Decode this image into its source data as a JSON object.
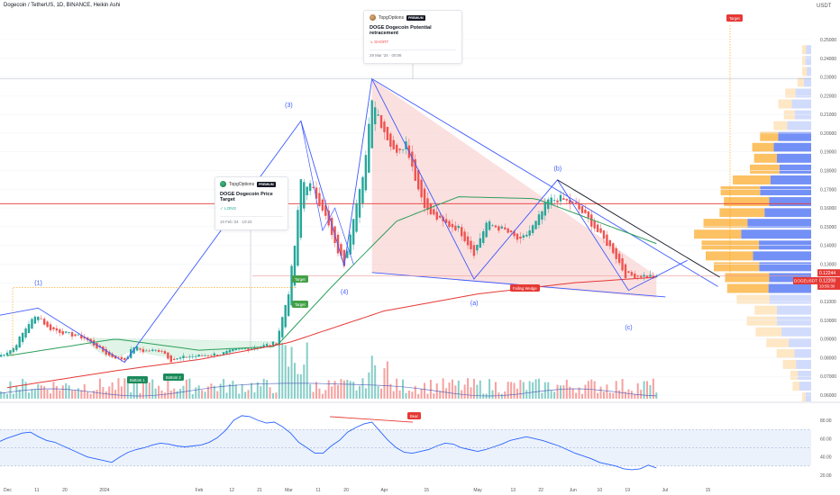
{
  "header": {
    "symbol_line": "Dogecoin / TetherUS, 1D, BINANCE, Heikin Ashi",
    "currency": "USDT"
  },
  "cards": {
    "long": {
      "brand": "TopgOptions",
      "badge": "PREMIUM",
      "title": "DOGE Dogecoin Price Target",
      "direction": "LONG",
      "direction_mark": "✓",
      "date": "10 Feb '24 · 10:23"
    },
    "short": {
      "brand": "TopgOptions",
      "badge": "PREMIUM",
      "title": "DOGE Dogecoin Potential retracement",
      "direction": "SHORT",
      "direction_mark": "↘",
      "date": "29 Mar '24 · 00:06"
    }
  },
  "colors": {
    "bull": "#26a69a",
    "bear": "#ef5350",
    "wave_line": "#3d5afe",
    "ema_green": "#2e9e5b",
    "ema_red": "#e53935",
    "wedge_fill": "#f8c6c6",
    "resistance": "#e53935",
    "profile_blue": "#5b7cf5",
    "profile_orange": "#fbb13c",
    "rsi_line": "#2962ff",
    "rsi_band": "#e3ecfb"
  },
  "chart_data": [
    {
      "type": "candlestick",
      "title": "",
      "price_scale": "USDT",
      "x_ticks": [
        "Dec",
        "11",
        "20",
        "2024",
        "Feb",
        "12",
        "21",
        "Mar",
        "11",
        "20",
        "Apr",
        "15",
        "May",
        "13",
        "22",
        "Jun",
        "10",
        "19",
        "Jul",
        "15"
      ],
      "y_ticks": [
        0.06,
        0.07,
        0.08,
        0.09,
        0.1,
        0.11,
        0.12,
        0.13,
        0.14,
        0.15,
        0.16,
        0.17,
        0.18,
        0.19,
        0.2,
        0.21,
        0.22,
        0.23,
        0.24,
        0.25
      ],
      "y_tick_labels": [
        "0.06000",
        "0.07000",
        "0.08000",
        "0.09000",
        "0.10000",
        "0.11000",
        "0.12000",
        "0.13000",
        "0.14000",
        "0.15000",
        "0.16000",
        "0.17000",
        "0.18000",
        "0.19000",
        "0.20000",
        "0.21000",
        "0.22000",
        "0.23000",
        "0.24000",
        "0.25000"
      ],
      "ylim": [
        0.059,
        0.258
      ],
      "last_price": {
        "value": 0.12244,
        "label": "0.12244",
        "symbol_tag": "DOGEUSDT"
      },
      "secondary_price": {
        "value": 0.12208,
        "label": "0.12208",
        "countdown": "10:56:30"
      },
      "price_path": [
        {
          "x": "Nov 28",
          "y": 0.0805
        },
        {
          "x": "Dec 3",
          "y": 0.085
        },
        {
          "x": "Dec 8",
          "y": 0.0985
        },
        {
          "x": "Dec 11",
          "y": 0.103
        },
        {
          "x": "Dec 14",
          "y": 0.096
        },
        {
          "x": "Dec 20",
          "y": 0.093
        },
        {
          "x": "Dec 26",
          "y": 0.0905
        },
        {
          "x": "Jan 3",
          "y": 0.081
        },
        {
          "x": "Jan 8",
          "y": 0.079
        },
        {
          "x": "Jan 11",
          "y": 0.086
        },
        {
          "x": "Jan 14",
          "y": 0.0835
        },
        {
          "x": "Jan 20",
          "y": 0.084
        },
        {
          "x": "Jan 23",
          "y": 0.0785
        },
        {
          "x": "Jan 28",
          "y": 0.0805
        },
        {
          "x": "Feb 1",
          "y": 0.081
        },
        {
          "x": "Feb 8",
          "y": 0.082
        },
        {
          "x": "Feb 14",
          "y": 0.0845
        },
        {
          "x": "Feb 21",
          "y": 0.086
        },
        {
          "x": "Feb 26",
          "y": 0.088
        },
        {
          "x": "Mar 1",
          "y": 0.115
        },
        {
          "x": "Mar 3",
          "y": 0.14
        },
        {
          "x": "Mar 5",
          "y": 0.175
        },
        {
          "x": "Mar 8",
          "y": 0.172
        },
        {
          "x": "Mar 12",
          "y": 0.16
        },
        {
          "x": "Mar 16",
          "y": 0.14
        },
        {
          "x": "Mar 19",
          "y": 0.13
        },
        {
          "x": "Mar 22",
          "y": 0.156
        },
        {
          "x": "Mar 25",
          "y": 0.175
        },
        {
          "x": "Mar 28",
          "y": 0.22
        },
        {
          "x": "Mar 31",
          "y": 0.205
        },
        {
          "x": "Apr 4",
          "y": 0.19
        },
        {
          "x": "Apr 8",
          "y": 0.195
        },
        {
          "x": "Apr 12",
          "y": 0.17
        },
        {
          "x": "Apr 15",
          "y": 0.158
        },
        {
          "x": "Apr 20",
          "y": 0.152
        },
        {
          "x": "Apr 25",
          "y": 0.149
        },
        {
          "x": "Apr 30",
          "y": 0.136
        },
        {
          "x": "May 4",
          "y": 0.152
        },
        {
          "x": "May 10",
          "y": 0.148
        },
        {
          "x": "May 15",
          "y": 0.142
        },
        {
          "x": "May 20",
          "y": 0.152
        },
        {
          "x": "May 24",
          "y": 0.164
        },
        {
          "x": "May 28",
          "y": 0.165
        },
        {
          "x": "Jun 2",
          "y": 0.161
        },
        {
          "x": "Jun 6",
          "y": 0.154
        },
        {
          "x": "Jun 10",
          "y": 0.145
        },
        {
          "x": "Jun 14",
          "y": 0.137
        },
        {
          "x": "Jun 18",
          "y": 0.124
        },
        {
          "x": "Jun 22",
          "y": 0.124
        },
        {
          "x": "Jun 26",
          "y": 0.1235
        },
        {
          "x": "Jun 28",
          "y": 0.1224
        }
      ],
      "moving_averages": [
        {
          "name": "",
          "color": "#2e9e5b",
          "values": [
            {
              "x": "Dec 1",
              "y": 0.081
            },
            {
              "x": "Jan 5",
              "y": 0.09
            },
            {
              "x": "Feb 1",
              "y": 0.084
            },
            {
              "x": "Feb 26",
              "y": 0.086
            },
            {
              "x": "Mar 15",
              "y": 0.118
            },
            {
              "x": "Apr 5",
              "y": 0.153
            },
            {
              "x": "Apr 25",
              "y": 0.166
            },
            {
              "x": "May 20",
              "y": 0.165
            },
            {
              "x": "Jun 10",
              "y": 0.152
            },
            {
              "x": "Jun 28",
              "y": 0.141
            }
          ]
        },
        {
          "name": "",
          "color": "#e53935",
          "values": [
            {
              "x": "Dec 1",
              "y": 0.064
            },
            {
              "x": "Jan 5",
              "y": 0.073
            },
            {
              "x": "Feb 1",
              "y": 0.079
            },
            {
              "x": "Mar 1",
              "y": 0.088
            },
            {
              "x": "Apr 1",
              "y": 0.105
            },
            {
              "x": "May 1",
              "y": 0.114
            },
            {
              "x": "Jun 1",
              "y": 0.12
            },
            {
              "x": "Jun 28",
              "y": 0.123
            }
          ]
        }
      ],
      "horizontal_levels": [
        {
          "label": "",
          "value": 0.1623,
          "color": "#e53935"
        },
        {
          "label": "",
          "value": 0.1237,
          "color": "#ef9a9a"
        }
      ],
      "wave_labels": [
        {
          "text": "(1)",
          "x": "Dec 11",
          "y": 0.119
        },
        {
          "text": "(3)",
          "x": "Mar 1",
          "y": 0.214
        },
        {
          "text": "(4)",
          "x": "Mar 19",
          "y": 0.114
        },
        {
          "text": "(a)",
          "x": "Apr 30",
          "y": 0.108
        },
        {
          "text": "(b)",
          "x": "May 27",
          "y": 0.18
        },
        {
          "text": "(c)",
          "x": "Jun 19",
          "y": 0.095
        }
      ],
      "annotations": [
        "Falling Wedge",
        "Bottom 1",
        "Bottom 2",
        "Target",
        "Target",
        "Target",
        "Bear"
      ]
    },
    {
      "type": "line",
      "title": "",
      "y_ticks": [
        20,
        40,
        60,
        80
      ],
      "y_tick_labels": [
        "20.00",
        "40.00",
        "60.00",
        "80.00"
      ],
      "ylim": [
        10,
        90
      ],
      "band": [
        30,
        70
      ],
      "series": [
        {
          "name": "",
          "values": [
            56,
            60,
            63,
            66,
            67,
            62,
            58,
            56,
            52,
            48,
            44,
            40,
            38,
            36,
            34,
            40,
            45,
            48,
            50,
            53,
            55,
            54,
            52,
            51,
            52,
            53,
            56,
            61,
            69,
            80,
            85,
            84,
            80,
            77,
            78,
            73,
            66,
            56,
            50,
            44,
            44,
            52,
            58,
            67,
            72,
            76,
            78,
            68,
            58,
            50,
            45,
            44,
            46,
            48,
            52,
            55,
            54,
            50,
            48,
            46,
            48,
            51,
            54,
            58,
            60,
            62,
            60,
            58,
            55,
            52,
            48,
            44,
            41,
            38,
            34,
            32,
            30,
            27,
            26,
            27,
            31,
            28
          ]
        }
      ]
    }
  ]
}
